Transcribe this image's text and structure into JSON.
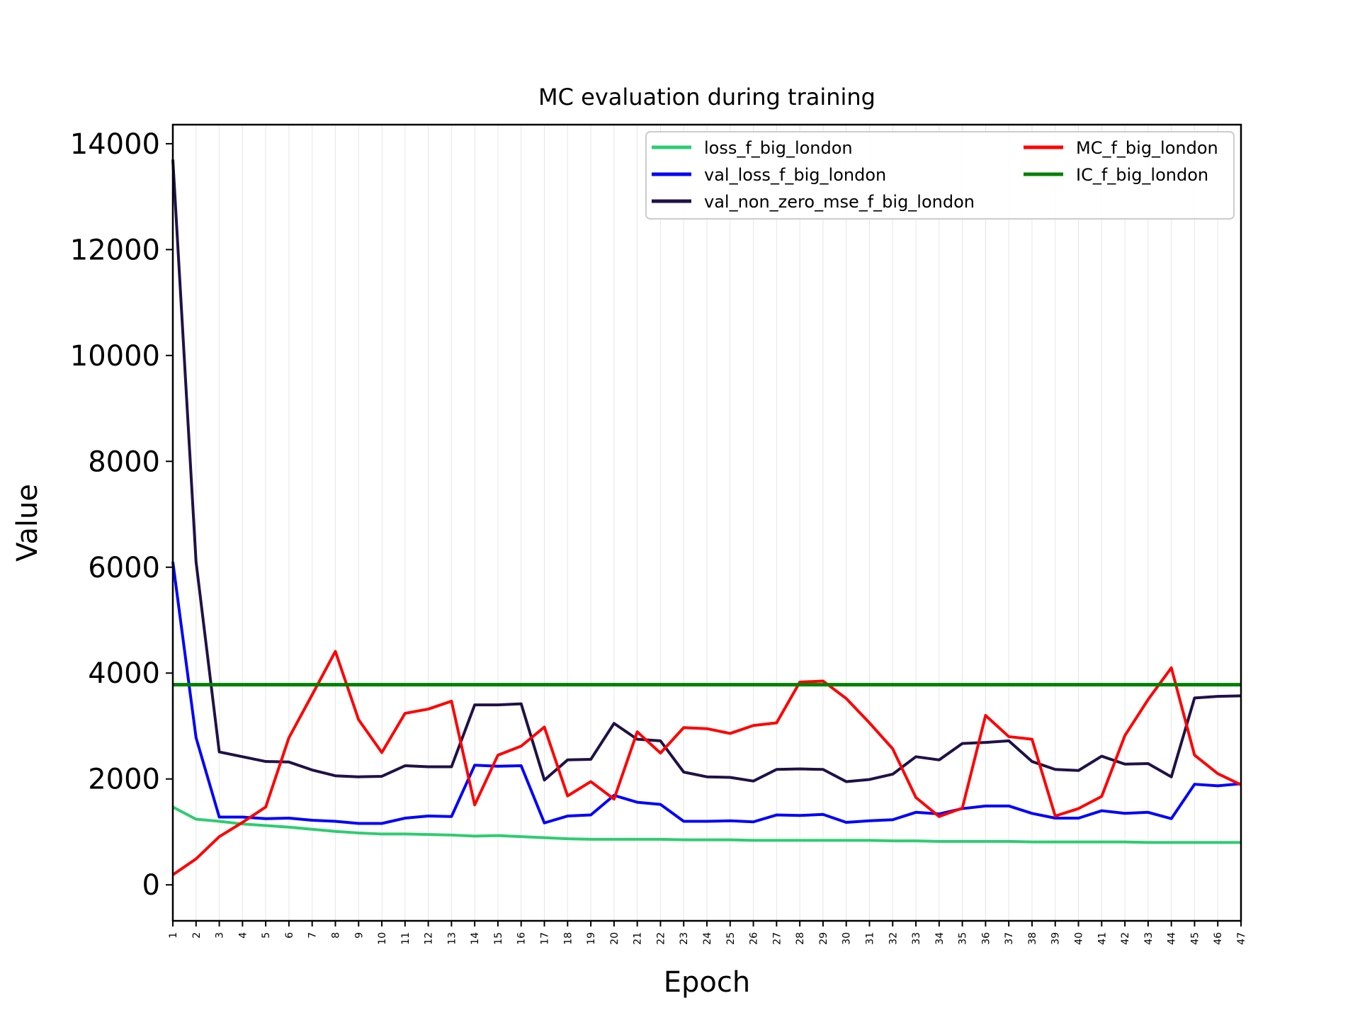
{
  "chart_data": {
    "type": "line",
    "title": "MC evaluation during training",
    "xlabel": "Epoch",
    "ylabel": "Value",
    "xlim": [
      1,
      47
    ],
    "ylim": [
      -680,
      14360
    ],
    "yticks": [
      0,
      2000,
      4000,
      6000,
      8000,
      10000,
      12000,
      14000
    ],
    "grid": "vertical",
    "legend_position": "top-right",
    "x": [
      1,
      2,
      3,
      4,
      5,
      6,
      7,
      8,
      9,
      10,
      11,
      12,
      13,
      14,
      15,
      16,
      17,
      18,
      19,
      20,
      21,
      22,
      23,
      24,
      25,
      26,
      27,
      28,
      29,
      30,
      31,
      32,
      33,
      34,
      35,
      36,
      37,
      38,
      39,
      40,
      41,
      42,
      43,
      44,
      45,
      46,
      47
    ],
    "series": [
      {
        "name": "loss_f_big_london",
        "color": "#2ecc71",
        "values": [
          1470,
          1240,
          1200,
          1150,
          1120,
          1090,
          1050,
          1010,
          980,
          960,
          960,
          950,
          940,
          920,
          930,
          910,
          890,
          870,
          860,
          860,
          860,
          860,
          850,
          850,
          850,
          840,
          840,
          840,
          840,
          840,
          840,
          830,
          830,
          820,
          820,
          820,
          820,
          810,
          810,
          810,
          810,
          810,
          800,
          800,
          800,
          800,
          800
        ]
      },
      {
        "name": "val_loss_f_big_london",
        "color": "#0000ff",
        "values": [
          6100,
          2780,
          1280,
          1280,
          1250,
          1260,
          1220,
          1200,
          1160,
          1160,
          1260,
          1300,
          1290,
          2260,
          2240,
          2250,
          1170,
          1300,
          1320,
          1690,
          1560,
          1520,
          1200,
          1200,
          1210,
          1190,
          1320,
          1310,
          1330,
          1180,
          1210,
          1230,
          1370,
          1340,
          1440,
          1490,
          1490,
          1350,
          1260,
          1260,
          1400,
          1350,
          1370,
          1250,
          1900,
          1870,
          1910
        ]
      },
      {
        "name": "val_non_zero_mse_f_big_london",
        "color": "#1f1147",
        "values": [
          13700,
          6100,
          2510,
          2420,
          2330,
          2320,
          2170,
          2060,
          2040,
          2050,
          2250,
          2230,
          2230,
          3400,
          3400,
          3420,
          1980,
          2360,
          2370,
          3050,
          2750,
          2720,
          2130,
          2040,
          2030,
          1960,
          2180,
          2190,
          2180,
          1950,
          1990,
          2090,
          2420,
          2360,
          2670,
          2690,
          2720,
          2330,
          2180,
          2160,
          2430,
          2280,
          2290,
          2040,
          3530,
          3560,
          3570
        ]
      },
      {
        "name": "MC_f_big_london",
        "color": "#ff0000",
        "values": [
          190,
          490,
          910,
          1180,
          1470,
          2780,
          3590,
          4410,
          3120,
          2500,
          3240,
          3320,
          3470,
          1510,
          2450,
          2620,
          2980,
          1680,
          1950,
          1620,
          2890,
          2490,
          2970,
          2950,
          2860,
          3010,
          3060,
          3830,
          3850,
          3520,
          3060,
          2570,
          1650,
          1290,
          1450,
          3200,
          2800,
          2750,
          1300,
          1440,
          1670,
          2820,
          3500,
          4100,
          2450,
          2100,
          1890
        ]
      },
      {
        "name": "IC_f_big_london",
        "color": "#008000",
        "values": [
          3780,
          3780,
          3780,
          3780,
          3780,
          3780,
          3780,
          3780,
          3780,
          3780,
          3780,
          3780,
          3780,
          3780,
          3780,
          3780,
          3780,
          3780,
          3780,
          3780,
          3780,
          3780,
          3780,
          3780,
          3780,
          3780,
          3780,
          3780,
          3780,
          3780,
          3780,
          3780,
          3780,
          3780,
          3780,
          3780,
          3780,
          3780,
          3780,
          3780,
          3780,
          3780,
          3780,
          3780,
          3780,
          3780,
          3780
        ]
      }
    ]
  }
}
